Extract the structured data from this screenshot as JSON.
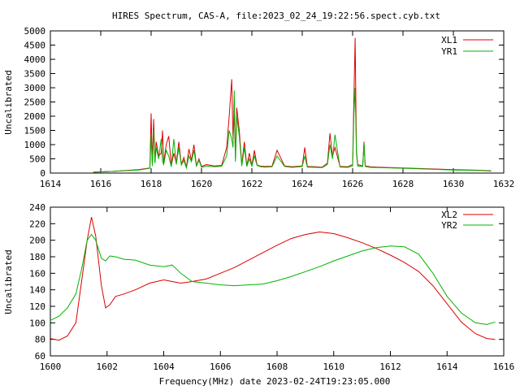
{
  "title": "HIRES Spectrum, CAS-A, file:2023_02_24_19:22:56.spect.cyb.txt",
  "colors": {
    "red": "#dd0000",
    "green": "#00b400"
  },
  "chart_data": [
    {
      "type": "line",
      "ylabel": "Uncalibrated",
      "xlabel": "",
      "xlim": [
        1614,
        1632
      ],
      "ylim": [
        0,
        5000
      ],
      "xticks": [
        1614,
        1616,
        1618,
        1620,
        1622,
        1624,
        1626,
        1628,
        1630,
        1632
      ],
      "yticks": [
        0,
        500,
        1000,
        1500,
        2000,
        2500,
        3000,
        3500,
        4000,
        4500,
        5000
      ],
      "legend_position": "top-right",
      "series": [
        {
          "name": "XL1",
          "color": "#dd0000",
          "x": [
            1615.7,
            1616.5,
            1617.5,
            1617.95,
            1618.0,
            1618.05,
            1618.1,
            1618.15,
            1618.2,
            1618.3,
            1618.4,
            1618.45,
            1618.5,
            1618.6,
            1618.7,
            1618.8,
            1618.9,
            1619.0,
            1619.1,
            1619.2,
            1619.3,
            1619.4,
            1619.5,
            1619.6,
            1619.7,
            1619.8,
            1619.9,
            1620.0,
            1620.2,
            1620.5,
            1620.8,
            1621.0,
            1621.1,
            1621.2,
            1621.25,
            1621.3,
            1621.35,
            1621.4,
            1621.5,
            1621.6,
            1621.7,
            1621.8,
            1621.9,
            1622.0,
            1622.1,
            1622.2,
            1622.3,
            1622.5,
            1622.8,
            1623.0,
            1623.3,
            1623.6,
            1624.0,
            1624.1,
            1624.2,
            1624.5,
            1624.8,
            1625.0,
            1625.1,
            1625.2,
            1625.3,
            1625.5,
            1625.8,
            1626.0,
            1626.05,
            1626.1,
            1626.15,
            1626.2,
            1626.4,
            1626.45,
            1626.5,
            1626.7,
            1627.0,
            1628.0,
            1629.0,
            1630.0,
            1631.0,
            1631.5
          ],
          "y": [
            30,
            60,
            120,
            180,
            2100,
            300,
            1900,
            400,
            1100,
            600,
            700,
            1500,
            350,
            1000,
            1300,
            250,
            700,
            350,
            1100,
            300,
            550,
            200,
            850,
            450,
            1000,
            260,
            500,
            230,
            300,
            250,
            270,
            900,
            2000,
            3300,
            1200,
            2100,
            500,
            2300,
            1500,
            300,
            1100,
            250,
            700,
            260,
            800,
            300,
            250,
            230,
            240,
            800,
            250,
            220,
            250,
            900,
            230,
            220,
            210,
            350,
            1400,
            600,
            900,
            230,
            220,
            300,
            2500,
            4750,
            800,
            300,
            250,
            1100,
            250,
            220,
            210,
            180,
            150,
            120,
            100,
            80
          ]
        },
        {
          "name": "YR1",
          "color": "#00b400",
          "x": [
            1615.7,
            1616.5,
            1617.5,
            1617.95,
            1618.0,
            1618.05,
            1618.1,
            1618.15,
            1618.2,
            1618.3,
            1618.4,
            1618.45,
            1618.5,
            1618.6,
            1618.7,
            1618.8,
            1618.9,
            1619.0,
            1619.1,
            1619.2,
            1619.3,
            1619.4,
            1619.5,
            1619.6,
            1619.7,
            1619.8,
            1619.9,
            1620.0,
            1620.2,
            1620.5,
            1620.8,
            1621.0,
            1621.1,
            1621.2,
            1621.25,
            1621.3,
            1621.35,
            1621.4,
            1621.5,
            1621.6,
            1621.7,
            1621.8,
            1621.9,
            1622.0,
            1622.1,
            1622.2,
            1622.3,
            1622.5,
            1622.8,
            1623.0,
            1623.3,
            1623.6,
            1624.0,
            1624.1,
            1624.2,
            1624.5,
            1624.8,
            1625.0,
            1625.1,
            1625.2,
            1625.3,
            1625.5,
            1625.8,
            1626.0,
            1626.05,
            1626.1,
            1626.15,
            1626.2,
            1626.4,
            1626.45,
            1626.5,
            1626.7,
            1627.0,
            1628.0,
            1629.0,
            1630.0,
            1631.0,
            1631.5
          ],
          "y": [
            30,
            60,
            110,
            170,
            1300,
            250,
            1500,
            350,
            900,
            500,
            1200,
            400,
            300,
            800,
            600,
            220,
            1200,
            300,
            900,
            280,
            450,
            180,
            600,
            400,
            800,
            240,
            450,
            200,
            250,
            220,
            240,
            600,
            1500,
            1200,
            900,
            2900,
            400,
            2000,
            1300,
            250,
            900,
            230,
            500,
            240,
            600,
            280,
            230,
            210,
            220,
            600,
            230,
            200,
            230,
            600,
            210,
            200,
            190,
            300,
            1000,
            500,
            1350,
            210,
            200,
            250,
            2000,
            3000,
            700,
            250,
            230,
            1050,
            230,
            200,
            190,
            170,
            140,
            110,
            90,
            70
          ]
        }
      ]
    },
    {
      "type": "line",
      "ylabel": "Uncalibrated",
      "xlabel": "Frequency(MHz) date 2023-02-24T19:23:05.000",
      "xlim": [
        1600,
        1616
      ],
      "ylim": [
        60,
        240
      ],
      "xticks": [
        1600,
        1602,
        1604,
        1606,
        1608,
        1610,
        1612,
        1614,
        1616
      ],
      "yticks": [
        60,
        80,
        100,
        120,
        140,
        160,
        180,
        200,
        220,
        240
      ],
      "legend_position": "top-right",
      "series": [
        {
          "name": "XL2",
          "color": "#dd0000",
          "x": [
            1600.0,
            1600.3,
            1600.6,
            1600.9,
            1601.1,
            1601.3,
            1601.45,
            1601.6,
            1601.8,
            1601.95,
            1602.1,
            1602.3,
            1602.6,
            1603.0,
            1603.5,
            1604.0,
            1604.3,
            1604.6,
            1605.0,
            1605.5,
            1606.0,
            1606.5,
            1607.0,
            1607.5,
            1608.0,
            1608.5,
            1609.0,
            1609.5,
            1610.0,
            1610.5,
            1611.0,
            1611.5,
            1612.0,
            1612.5,
            1613.0,
            1613.5,
            1614.0,
            1614.5,
            1615.0,
            1615.4,
            1615.7
          ],
          "y": [
            81,
            79,
            84,
            100,
            150,
            200,
            228,
            205,
            145,
            118,
            122,
            132,
            135,
            140,
            148,
            152,
            150,
            148,
            150,
            153,
            160,
            167,
            176,
            185,
            194,
            202,
            207,
            210,
            208,
            203,
            197,
            190,
            182,
            173,
            162,
            145,
            123,
            101,
            87,
            81,
            80
          ]
        },
        {
          "name": "YR2",
          "color": "#00b400",
          "x": [
            1600.0,
            1600.3,
            1600.6,
            1600.9,
            1601.1,
            1601.3,
            1601.45,
            1601.6,
            1601.8,
            1601.95,
            1602.1,
            1602.3,
            1602.6,
            1603.0,
            1603.5,
            1604.0,
            1604.3,
            1604.6,
            1605.0,
            1605.5,
            1606.0,
            1606.5,
            1607.0,
            1607.5,
            1608.0,
            1608.5,
            1609.0,
            1609.5,
            1610.0,
            1610.5,
            1611.0,
            1611.5,
            1612.0,
            1612.5,
            1613.0,
            1613.5,
            1614.0,
            1614.5,
            1615.0,
            1615.4,
            1615.7
          ],
          "y": [
            103,
            108,
            118,
            135,
            165,
            200,
            207,
            200,
            178,
            175,
            181,
            180,
            177,
            176,
            170,
            168,
            170,
            160,
            150,
            148,
            146,
            145,
            146,
            147,
            151,
            156,
            162,
            168,
            175,
            181,
            187,
            191,
            193,
            192,
            183,
            160,
            132,
            112,
            100,
            98,
            101
          ]
        }
      ]
    }
  ]
}
